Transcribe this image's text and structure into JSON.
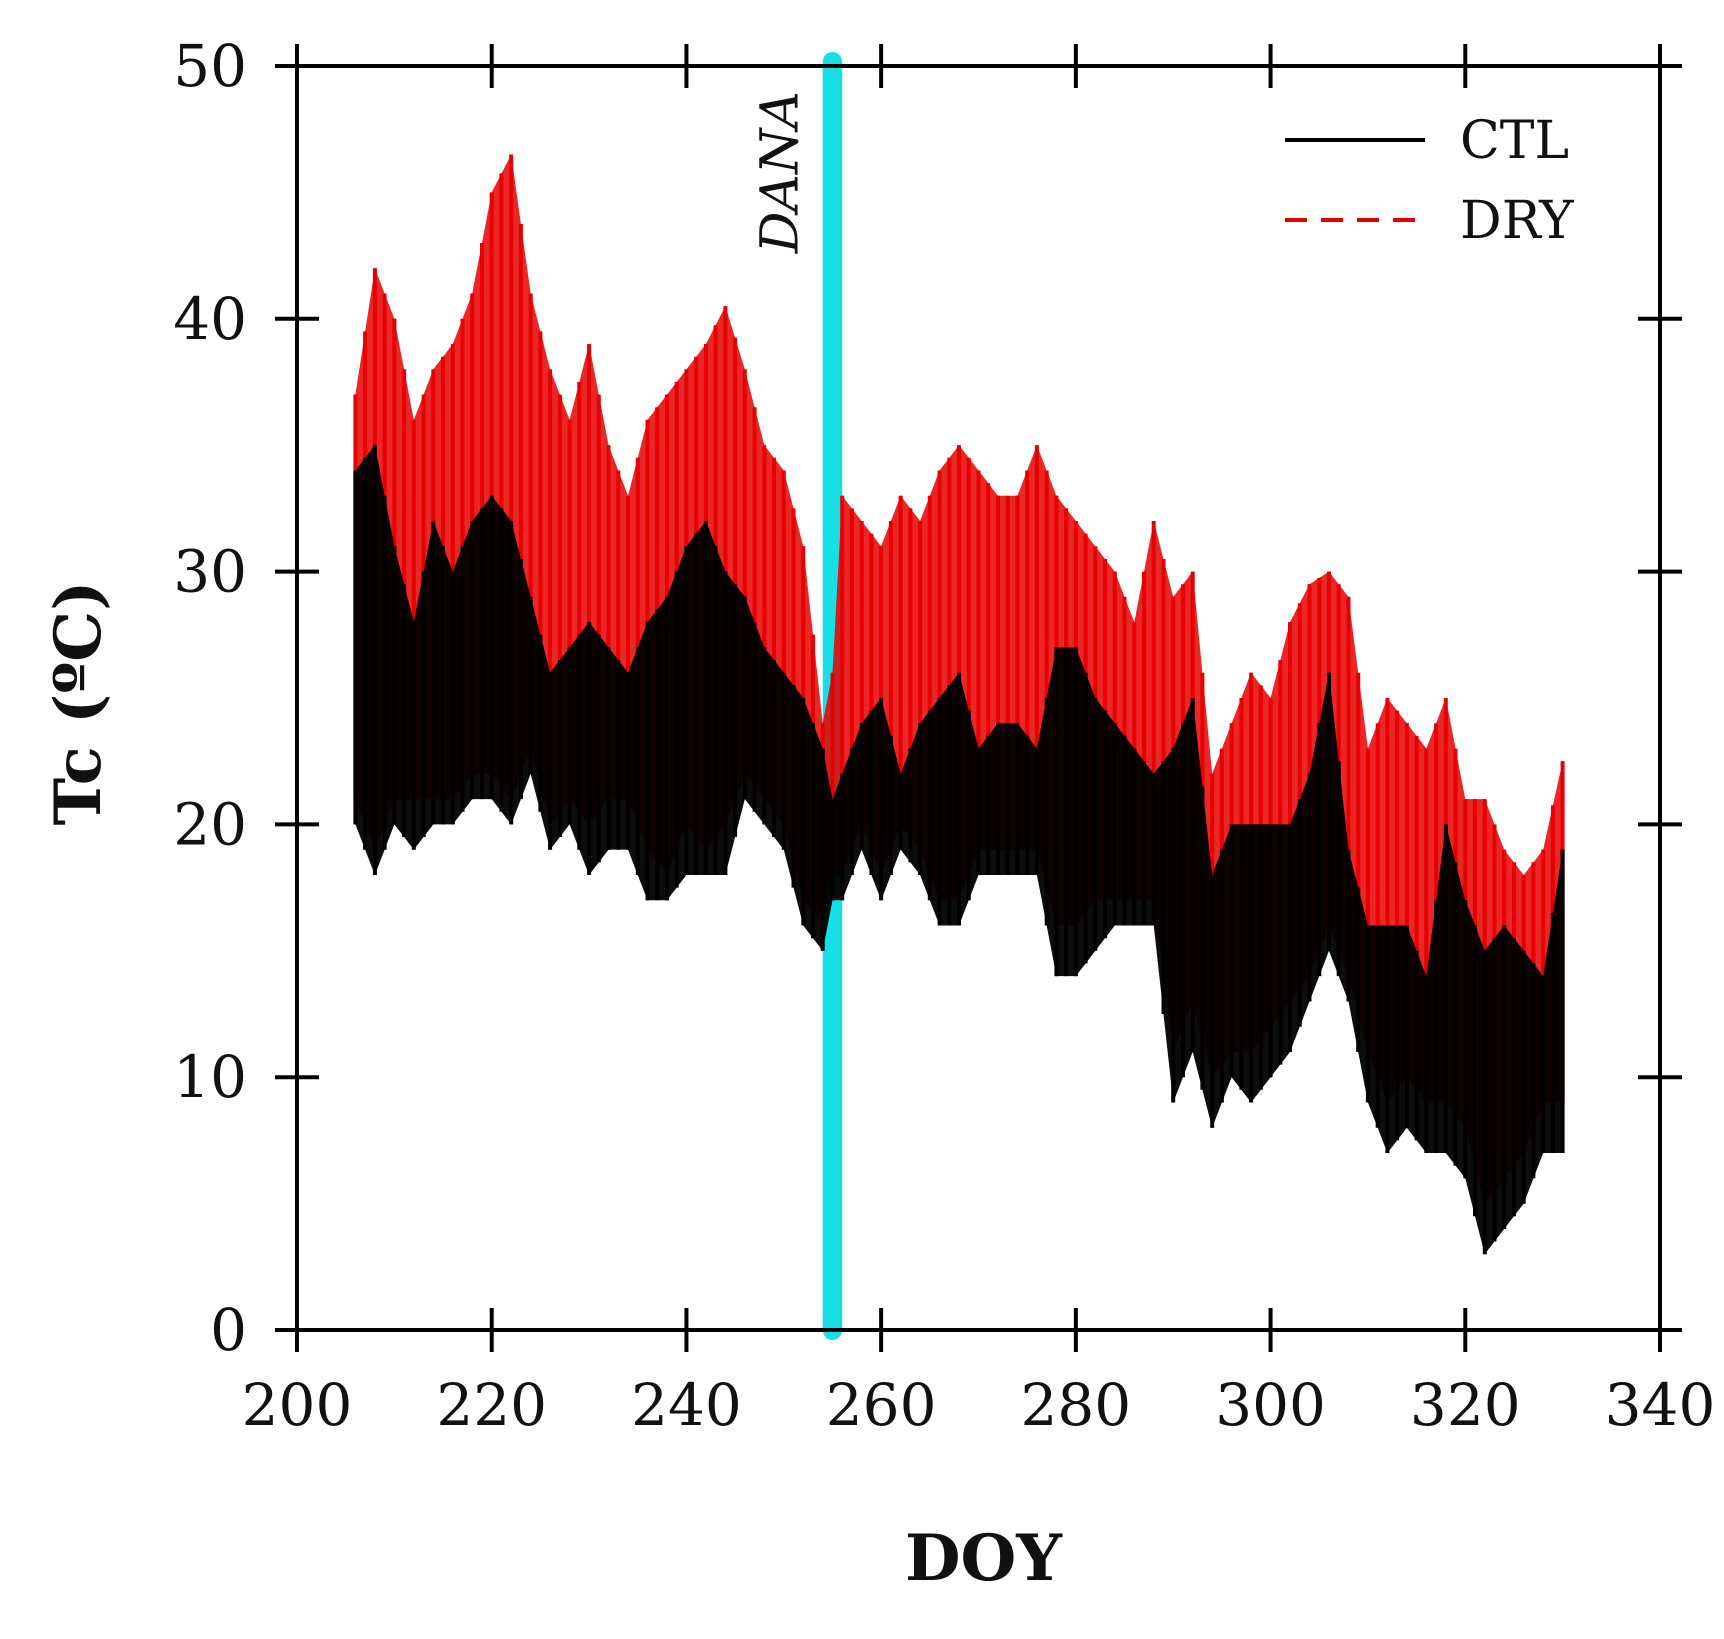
{
  "chart_data": {
    "type": "line",
    "title": "",
    "xlabel": "DOY",
    "ylabel": "Tc (ºC)",
    "xlim": [
      200,
      340
    ],
    "ylim": [
      0,
      50
    ],
    "xticks": [
      200,
      220,
      240,
      260,
      280,
      300,
      320,
      340
    ],
    "yticks": [
      0,
      10,
      20,
      30,
      40,
      50
    ],
    "grid": false,
    "legend_position": "top-right",
    "annotation": {
      "text": "DANA",
      "x_range": [
        254,
        256
      ]
    },
    "highlight_color": "#16e0e6",
    "series": [
      {
        "name": "CTL",
        "color": "#000000",
        "style": "solid",
        "x": [
          206,
          208,
          210,
          212,
          214,
          216,
          218,
          220,
          222,
          224,
          226,
          228,
          230,
          232,
          234,
          236,
          238,
          240,
          242,
          244,
          246,
          248,
          250,
          252,
          254,
          255,
          256,
          258,
          260,
          262,
          264,
          266,
          268,
          270,
          272,
          274,
          276,
          278,
          280,
          282,
          284,
          286,
          288,
          290,
          292,
          294,
          296,
          298,
          300,
          302,
          304,
          306,
          308,
          310,
          312,
          314,
          316,
          318,
          320,
          322,
          324,
          326,
          328,
          330
        ],
        "min": [
          20,
          18,
          20,
          19,
          20,
          20,
          21,
          21,
          20,
          22,
          19,
          20,
          18,
          19,
          19,
          17,
          17,
          18,
          18,
          18,
          21,
          20,
          19,
          16,
          15,
          17,
          17,
          19,
          17,
          19,
          18,
          16,
          16,
          18,
          18,
          18,
          18,
          14,
          14,
          15,
          16,
          16,
          16,
          9,
          11,
          8,
          10,
          9,
          10,
          11,
          13,
          15,
          13,
          9,
          7,
          8,
          7,
          7,
          6,
          3,
          4,
          5,
          7,
          7
        ],
        "max": [
          34,
          35,
          31,
          28,
          32,
          30,
          32,
          33,
          32,
          29,
          26,
          27,
          28,
          27,
          26,
          28,
          29,
          31,
          32,
          30,
          29,
          27,
          26,
          25,
          23,
          21,
          22,
          24,
          25,
          22,
          24,
          25,
          26,
          23,
          24,
          24,
          23,
          27,
          27,
          25,
          24,
          23,
          22,
          23,
          25,
          18,
          20,
          20,
          20,
          20,
          22,
          26,
          19,
          16,
          16,
          16,
          14,
          20,
          17,
          15,
          16,
          15,
          14,
          19
        ]
      },
      {
        "name": "DRY",
        "color": "#e80000",
        "style": "dashed",
        "x": [
          206,
          208,
          210,
          212,
          214,
          216,
          218,
          220,
          222,
          224,
          226,
          228,
          230,
          232,
          234,
          236,
          238,
          240,
          242,
          244,
          246,
          248,
          250,
          252,
          254,
          255,
          256,
          258,
          260,
          262,
          264,
          266,
          268,
          270,
          272,
          274,
          276,
          278,
          280,
          282,
          284,
          286,
          288,
          290,
          292,
          294,
          296,
          298,
          300,
          302,
          304,
          306,
          308,
          310,
          312,
          314,
          316,
          318,
          320,
          322,
          324,
          326,
          328,
          330
        ],
        "min": [
          21,
          19,
          21,
          21,
          21,
          21,
          22,
          22,
          21,
          23,
          20,
          21,
          20,
          21,
          21,
          19,
          18,
          20,
          19,
          20,
          22,
          21,
          20,
          17,
          16,
          18,
          18,
          20,
          18,
          20,
          19,
          17,
          17,
          19,
          19,
          19,
          19,
          16,
          16,
          17,
          17,
          17,
          17,
          11,
          13,
          10,
          11,
          11,
          12,
          13,
          14,
          16,
          14,
          11,
          9,
          10,
          9,
          9,
          8,
          5,
          6,
          7,
          9,
          9
        ],
        "max": [
          37,
          42,
          40,
          36,
          38,
          39,
          41,
          45,
          46.5,
          41,
          38,
          36,
          39,
          35,
          33,
          36,
          37,
          38,
          39,
          40.5,
          38,
          35,
          34,
          31,
          24,
          26,
          33,
          32,
          31,
          33,
          32,
          34,
          35,
          34,
          33,
          33,
          35,
          33,
          32,
          31,
          30,
          28,
          32,
          29,
          30,
          22,
          24,
          26,
          25,
          28,
          29.5,
          30,
          29,
          23,
          25,
          24,
          23,
          25,
          21,
          21,
          19,
          18,
          19,
          22.5
        ]
      }
    ]
  }
}
